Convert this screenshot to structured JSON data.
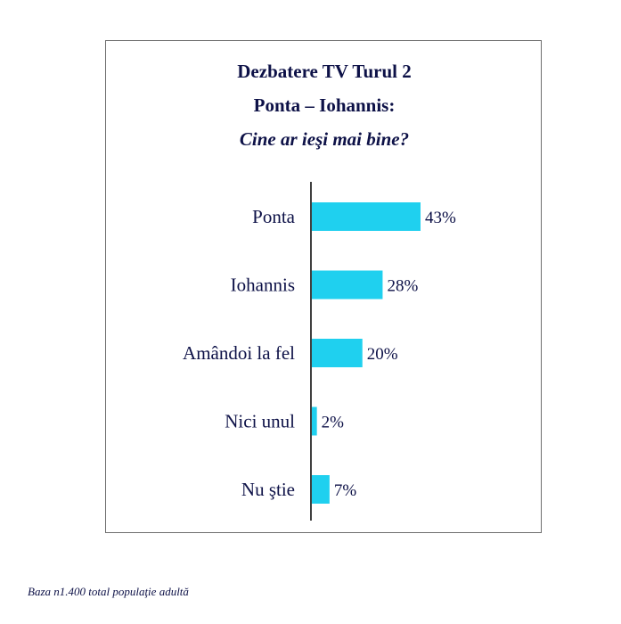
{
  "chart_data": {
    "type": "bar",
    "orientation": "horizontal",
    "title_lines": [
      "Dezbatere TV Turul 2",
      "Ponta – Iohannis:",
      "Cine ar ieşi mai bine?"
    ],
    "categories": [
      "Ponta",
      "Iohannis",
      "Amândoi la fel",
      "Nici unul",
      "Nu ştie"
    ],
    "values": [
      43,
      28,
      20,
      2,
      7
    ],
    "data_labels": [
      "43%",
      "28%",
      "20%",
      "2%",
      "7%"
    ],
    "unit": "%",
    "bar_color": "#1fd0ef",
    "text_color": "#0d1147",
    "xlabel": "",
    "ylabel": "",
    "grid": false,
    "legend": "none"
  },
  "footnote": "Baza n1.400 total populaţie adultă"
}
